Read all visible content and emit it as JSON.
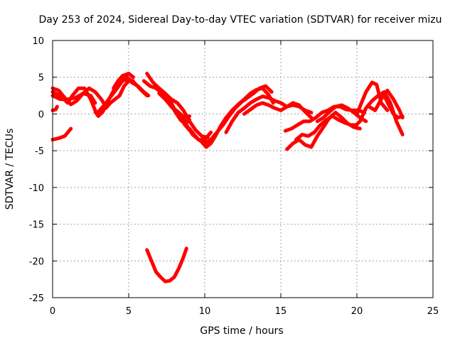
{
  "chart_data": {
    "type": "line",
    "title": "Day 253 of 2024, Sidereal Day-to-day VTEC variation (SDTVAR) for receiver mizu",
    "xlabel": "GPS time / hours",
    "ylabel": "SDTVAR / TECUs",
    "xlim": [
      0,
      25
    ],
    "ylim": [
      -25,
      10
    ],
    "xticks": [
      0,
      5,
      10,
      15,
      20,
      25
    ],
    "yticks": [
      -25,
      -20,
      -15,
      -10,
      -5,
      0,
      5,
      10
    ],
    "xtick_labels": [
      "0",
      "5",
      "10",
      "15",
      "20",
      "25"
    ],
    "ytick_labels": [
      "-25",
      "-20",
      "-15",
      "-10",
      "-5",
      "0",
      "5",
      "10"
    ],
    "grid": true,
    "series_color": "#ff0000",
    "series": [
      {
        "name": "track-1",
        "x": [
          0.0,
          0.5,
          1.0,
          1.3,
          1.7,
          2.1,
          2.5,
          2.8
        ],
        "y": [
          3.0,
          2.5,
          1.5,
          2.5,
          3.5,
          3.5,
          2.0,
          0.5
        ]
      },
      {
        "name": "track-2",
        "x": [
          0.0,
          0.5,
          1.0,
          1.5,
          2.0,
          2.5,
          2.8
        ],
        "y": [
          2.5,
          2.0,
          2.0,
          2.2,
          2.8,
          2.5,
          1.5
        ]
      },
      {
        "name": "track-3",
        "x": [
          0.0,
          0.4,
          0.8,
          1.2,
          1.6,
          2.0,
          2.4,
          2.8,
          3.2,
          3.5
        ],
        "y": [
          3.5,
          3.2,
          2.2,
          1.3,
          1.8,
          2.8,
          3.5,
          3.0,
          2.0,
          1.0
        ]
      },
      {
        "name": "track-4",
        "x": [
          0.0,
          0.2,
          0.3
        ],
        "y": [
          0.5,
          0.6,
          1.0
        ]
      },
      {
        "name": "track-5",
        "x": [
          0.0,
          0.4,
          0.8,
          1.0,
          1.2
        ],
        "y": [
          -3.5,
          -3.3,
          -3.0,
          -2.5,
          -2.0
        ]
      },
      {
        "name": "track-6",
        "x": [
          2.8,
          3.0,
          3.3,
          3.7,
          4.1,
          4.5,
          4.8,
          5.2,
          5.6,
          6.0,
          6.3
        ],
        "y": [
          0.3,
          -0.3,
          0.3,
          2.0,
          3.5,
          4.8,
          5.2,
          4.3,
          3.8,
          3.0,
          2.5
        ]
      },
      {
        "name": "track-7",
        "x": [
          3.0,
          3.4,
          3.8,
          4.2,
          4.6,
          5.0,
          5.4,
          5.8,
          6.2
        ],
        "y": [
          0.3,
          1.2,
          2.3,
          3.4,
          4.5,
          4.8,
          4.2,
          3.3,
          2.5
        ]
      },
      {
        "name": "track-8",
        "x": [
          3.5,
          3.8,
          4.1,
          4.4,
          4.7,
          5.0,
          5.3
        ],
        "y": [
          0.8,
          1.5,
          2.0,
          2.5,
          3.8,
          4.5,
          4.5
        ]
      },
      {
        "name": "track-9",
        "x": [
          4.0,
          4.3,
          4.6,
          5.0,
          5.3
        ],
        "y": [
          3.5,
          4.5,
          5.2,
          5.5,
          5.0
        ]
      },
      {
        "name": "track-10",
        "x": [
          6.0,
          6.4,
          6.8,
          7.2,
          7.6,
          8.0,
          8.4,
          8.8,
          9.2,
          9.6,
          10.0,
          10.4
        ],
        "y": [
          4.5,
          3.8,
          3.5,
          3.0,
          2.0,
          0.5,
          -0.8,
          -1.5,
          -2.8,
          -3.5,
          -3.5,
          -2.5
        ]
      },
      {
        "name": "track-11",
        "x": [
          6.2,
          6.6,
          7.0,
          7.4,
          7.8,
          8.2,
          8.6,
          9.0,
          9.4,
          9.8,
          10.2
        ],
        "y": [
          5.5,
          4.3,
          3.5,
          2.8,
          2.0,
          1.5,
          0.5,
          -1.0,
          -2.2,
          -3.0,
          -3.2
        ]
      },
      {
        "name": "track-12",
        "x": [
          6.8,
          7.2,
          7.6,
          8.0,
          8.4,
          8.7,
          9.0
        ],
        "y": [
          3.5,
          2.8,
          1.6,
          0.7,
          0.0,
          -0.6,
          -0.3
        ]
      },
      {
        "name": "track-13",
        "x": [
          7.0,
          7.4,
          7.8,
          8.2,
          8.5,
          8.8,
          9.0
        ],
        "y": [
          2.8,
          2.0,
          1.0,
          0.2,
          -0.5,
          -1.2,
          -0.8
        ]
      },
      {
        "name": "track-14",
        "x": [
          7.5,
          7.8,
          8.1,
          8.4,
          8.7,
          9.0
        ],
        "y": [
          2.5,
          1.5,
          0.3,
          -0.5,
          -1.5,
          -2.2
        ]
      },
      {
        "name": "track-15",
        "x": [
          6.2,
          6.5,
          6.8,
          7.1,
          7.4,
          7.7,
          8.0,
          8.3,
          8.6,
          8.8
        ],
        "y": [
          -18.5,
          -20.0,
          -21.5,
          -22.2,
          -22.8,
          -22.7,
          -22.2,
          -21.0,
          -19.5,
          -18.3
        ]
      },
      {
        "name": "track-16",
        "x": [
          9.0,
          9.3,
          9.6,
          10.0,
          10.4,
          10.8,
          11.2,
          11.6,
          12.0,
          12.4,
          12.8,
          13.2,
          13.6,
          14.0,
          14.4
        ],
        "y": [
          -2.0,
          -2.8,
          -3.5,
          -4.0,
          -3.5,
          -2.5,
          -1.5,
          -0.3,
          0.8,
          1.6,
          2.2,
          2.8,
          3.5,
          3.8,
          3.0
        ]
      },
      {
        "name": "track-17",
        "x": [
          9.8,
          10.1,
          10.4,
          10.7,
          11.0,
          11.4,
          11.8,
          12.2,
          12.6,
          13.0,
          13.4,
          13.8,
          14.2,
          14.5
        ],
        "y": [
          -3.8,
          -4.5,
          -4.0,
          -3.0,
          -1.8,
          -0.5,
          0.5,
          1.3,
          2.0,
          2.8,
          3.3,
          3.5,
          2.6,
          1.5
        ]
      },
      {
        "name": "track-18",
        "x": [
          11.4,
          11.8,
          12.2,
          12.6,
          13.0,
          13.4,
          13.8,
          14.2,
          14.6,
          15.0,
          15.4,
          15.8,
          16.2,
          16.6,
          17.0
        ],
        "y": [
          -2.5,
          -1.0,
          0.2,
          0.8,
          1.5,
          2.0,
          2.4,
          2.2,
          1.8,
          1.5,
          1.0,
          1.2,
          1.0,
          0.5,
          0.2
        ]
      },
      {
        "name": "track-19",
        "x": [
          12.6,
          13.0,
          13.4,
          13.8,
          14.2,
          14.6,
          15.0,
          15.4,
          15.8,
          16.2,
          16.6,
          17.0
        ],
        "y": [
          0.0,
          0.6,
          1.2,
          1.5,
          1.2,
          0.8,
          0.5,
          1.0,
          1.5,
          1.2,
          0.3,
          -0.5
        ]
      },
      {
        "name": "track-20",
        "x": [
          15.3,
          15.7,
          16.1,
          16.5,
          16.9,
          17.3,
          17.7,
          18.1,
          18.5,
          18.9,
          19.3,
          19.7,
          20.1,
          20.5
        ],
        "y": [
          -2.3,
          -2.0,
          -1.5,
          -1.0,
          -1.0,
          -0.5,
          0.2,
          0.5,
          1.0,
          1.0,
          0.6,
          0.5,
          0.5,
          0.2
        ]
      },
      {
        "name": "track-21",
        "x": [
          15.4,
          15.8,
          16.2,
          16.6,
          17.0,
          17.4,
          17.8,
          18.2,
          18.6,
          19.0,
          19.4,
          19.8,
          20.2
        ],
        "y": [
          -4.8,
          -4.0,
          -3.5,
          -4.2,
          -4.5,
          -3.0,
          -1.8,
          -0.5,
          0.2,
          -0.5,
          -1.3,
          -1.8,
          -2.0
        ]
      },
      {
        "name": "track-22",
        "x": [
          16.0,
          16.4,
          16.8,
          17.2,
          17.6,
          18.0,
          18.4,
          18.8,
          19.2,
          19.6,
          20.0
        ],
        "y": [
          -3.5,
          -2.8,
          -3.0,
          -2.5,
          -1.5,
          -0.8,
          -0.3,
          -0.8,
          -1.2,
          -1.5,
          -1.5
        ]
      },
      {
        "name": "track-23",
        "x": [
          17.4,
          17.8,
          18.2,
          18.6,
          19.0,
          19.4,
          19.8,
          20.2,
          20.6
        ],
        "y": [
          -1.0,
          -0.5,
          0.3,
          1.0,
          1.2,
          0.8,
          0.2,
          -0.5,
          -1.0
        ]
      },
      {
        "name": "track-24",
        "x": [
          19.8,
          20.2,
          20.6,
          21.0,
          21.4,
          21.8,
          22.2,
          22.6,
          23.0
        ],
        "y": [
          -1.8,
          -1.0,
          0.8,
          1.8,
          2.5,
          3.0,
          1.5,
          -1.0,
          -2.8
        ]
      },
      {
        "name": "track-25",
        "x": [
          20.0,
          20.3,
          20.6,
          21.0,
          21.3,
          21.6,
          22.0
        ],
        "y": [
          0.0,
          1.5,
          3.0,
          4.3,
          4.0,
          1.5,
          0.5
        ]
      },
      {
        "name": "track-26",
        "x": [
          20.8,
          21.2,
          21.6,
          22.0,
          22.4,
          22.8,
          23.0
        ],
        "y": [
          1.0,
          0.5,
          2.0,
          3.2,
          2.0,
          0.5,
          -0.5
        ]
      },
      {
        "name": "track-27",
        "x": [
          21.8,
          22.1,
          22.4,
          22.7,
          23.0
        ],
        "y": [
          2.5,
          1.2,
          0.0,
          -0.5,
          -0.3
        ]
      }
    ]
  }
}
